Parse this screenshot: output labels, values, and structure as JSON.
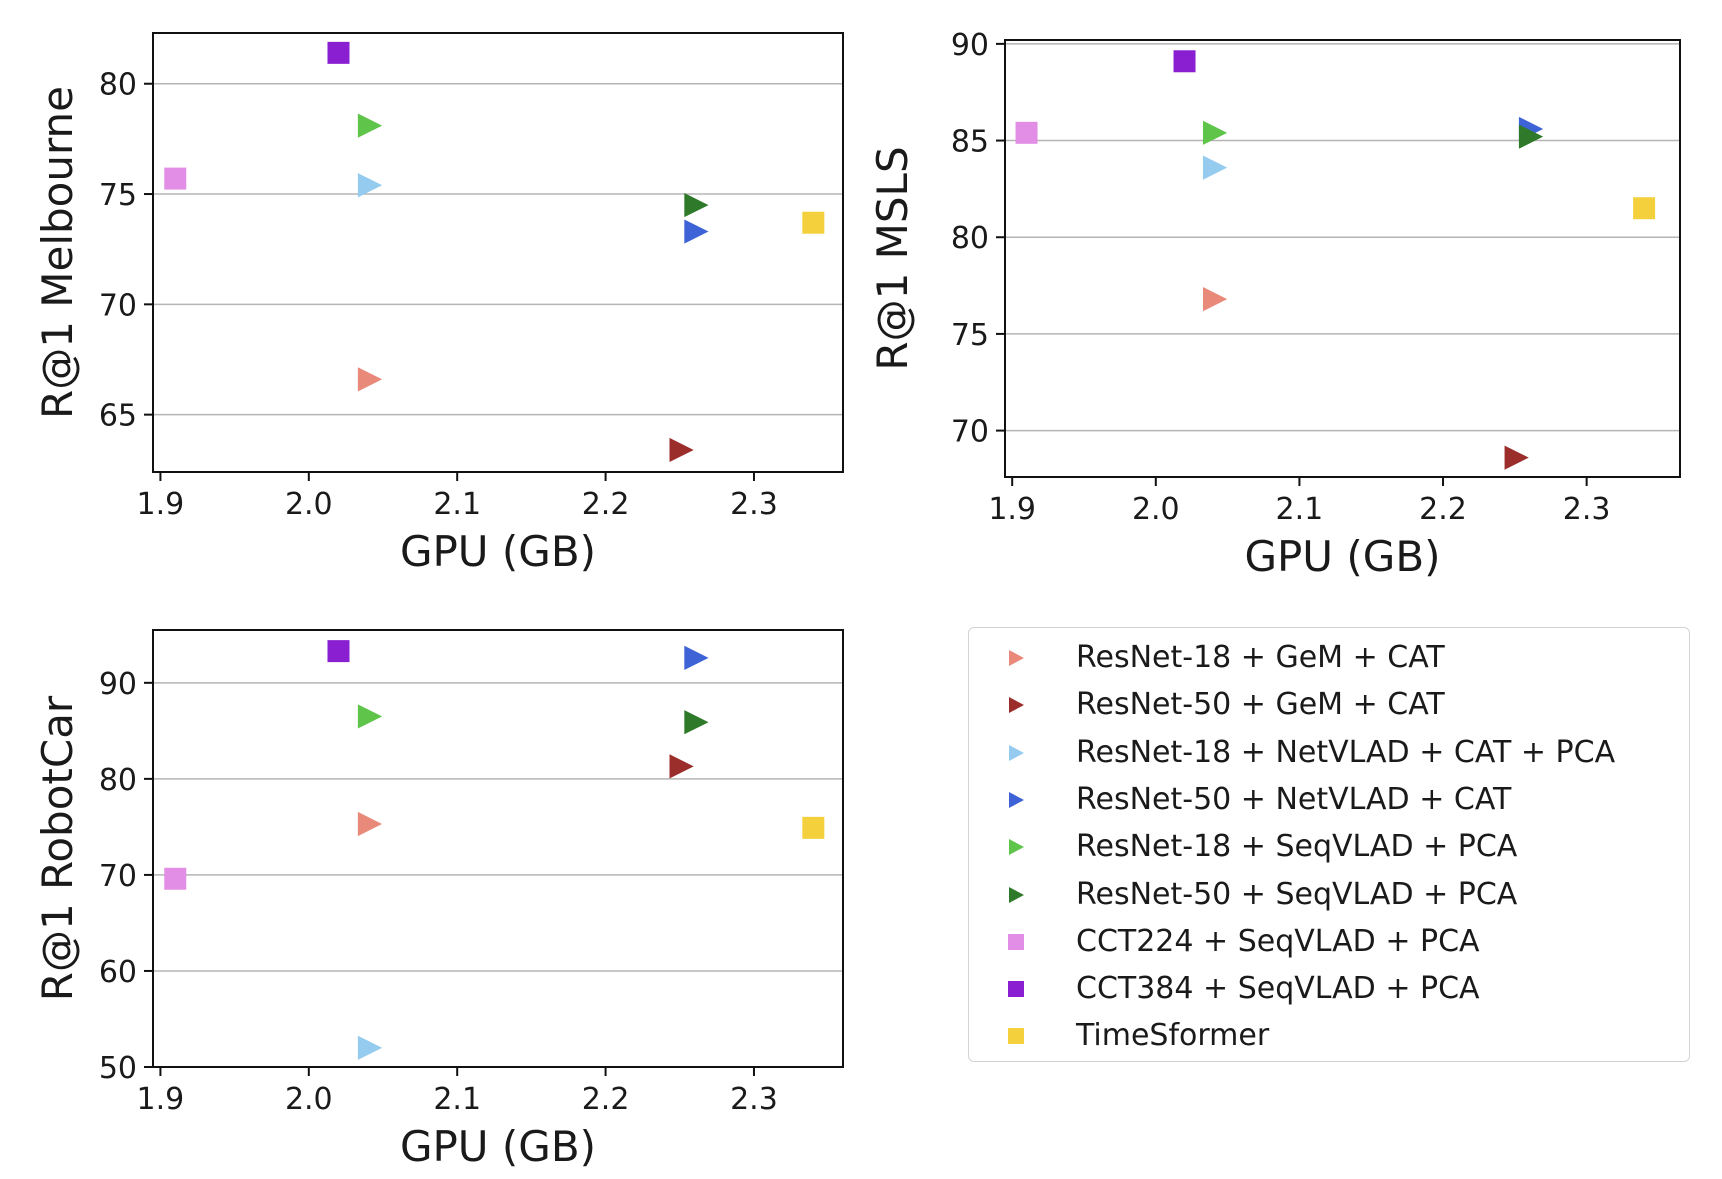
{
  "chart_data": [
    {
      "type": "scatter",
      "xlabel": "GPU (GB)",
      "ylabel": "R@1 Melbourne",
      "xlim": [
        1.895,
        2.36
      ],
      "ylim": [
        62.4,
        82.3
      ],
      "xticks": [
        1.9,
        2.0,
        2.1,
        2.2,
        2.3
      ],
      "yticks": [
        65,
        70,
        75,
        80
      ],
      "grid": "horizontal",
      "points": [
        {
          "name": "ResNet-18 + GeM + CAT",
          "x": 2.04,
          "y": 66.6
        },
        {
          "name": "ResNet-50 + GeM + CAT",
          "x": 2.25,
          "y": 63.4
        },
        {
          "name": "ResNet-18 + NetVLAD + CAT + PCA",
          "x": 2.04,
          "y": 75.4
        },
        {
          "name": "ResNet-50 + NetVLAD + CAT",
          "x": 2.26,
          "y": 73.3
        },
        {
          "name": "ResNet-18 + SeqVLAD + PCA",
          "x": 2.04,
          "y": 78.1
        },
        {
          "name": "ResNet-50 + SeqVLAD + PCA",
          "x": 2.26,
          "y": 74.5
        },
        {
          "name": "CCT224 + SeqVLAD + PCA",
          "x": 1.91,
          "y": 75.7
        },
        {
          "name": "CCT384 + SeqVLAD + PCA",
          "x": 2.02,
          "y": 81.4
        },
        {
          "name": "TimeSformer",
          "x": 2.34,
          "y": 73.7
        }
      ]
    },
    {
      "type": "scatter",
      "xlabel": "GPU (GB)",
      "ylabel": "R@1 MSLS",
      "xlim": [
        1.895,
        2.365
      ],
      "ylim": [
        67.6,
        90.2
      ],
      "xticks": [
        1.9,
        2.0,
        2.1,
        2.2,
        2.3
      ],
      "yticks": [
        70,
        75,
        80,
        85,
        90
      ],
      "grid": "horizontal",
      "points": [
        {
          "name": "ResNet-18 + GeM + CAT",
          "x": 2.04,
          "y": 76.8
        },
        {
          "name": "ResNet-50 + GeM + CAT",
          "x": 2.25,
          "y": 68.6
        },
        {
          "name": "ResNet-18 + NetVLAD + CAT + PCA",
          "x": 2.04,
          "y": 83.6
        },
        {
          "name": "ResNet-50 + NetVLAD + CAT",
          "x": 2.26,
          "y": 85.6
        },
        {
          "name": "ResNet-18 + SeqVLAD + PCA",
          "x": 2.04,
          "y": 85.4
        },
        {
          "name": "ResNet-50 + SeqVLAD + PCA",
          "x": 2.26,
          "y": 85.2
        },
        {
          "name": "CCT224 + SeqVLAD + PCA",
          "x": 1.91,
          "y": 85.4
        },
        {
          "name": "CCT384 + SeqVLAD + PCA",
          "x": 2.02,
          "y": 89.1
        },
        {
          "name": "TimeSformer",
          "x": 2.34,
          "y": 81.5
        }
      ]
    },
    {
      "type": "scatter",
      "xlabel": "GPU (GB)",
      "ylabel": "R@1 RobotCar",
      "xlim": [
        1.895,
        2.36
      ],
      "ylim": [
        50,
        95.5
      ],
      "xticks": [
        1.9,
        2.0,
        2.1,
        2.2,
        2.3
      ],
      "yticks": [
        50,
        60,
        70,
        80,
        90
      ],
      "grid": "horizontal",
      "points": [
        {
          "name": "ResNet-18 + GeM + CAT",
          "x": 2.04,
          "y": 75.3
        },
        {
          "name": "ResNet-50 + GeM + CAT",
          "x": 2.25,
          "y": 81.3
        },
        {
          "name": "ResNet-18 + NetVLAD + CAT + PCA",
          "x": 2.04,
          "y": 52.0
        },
        {
          "name": "ResNet-50 + NetVLAD + CAT",
          "x": 2.26,
          "y": 92.6
        },
        {
          "name": "ResNet-18 + SeqVLAD + PCA",
          "x": 2.04,
          "y": 86.5
        },
        {
          "name": "ResNet-50 + SeqVLAD + PCA",
          "x": 2.26,
          "y": 85.9
        },
        {
          "name": "CCT224 + SeqVLAD + PCA",
          "x": 1.91,
          "y": 69.6
        },
        {
          "name": "CCT384 + SeqVLAD + PCA",
          "x": 2.02,
          "y": 93.3
        },
        {
          "name": "TimeSformer",
          "x": 2.34,
          "y": 74.9
        }
      ]
    }
  ],
  "legend": {
    "placement": "lower-right",
    "entries": [
      {
        "label": "ResNet-18 + GeM + CAT",
        "marker": "triangle-right",
        "color": "#e9897a"
      },
      {
        "label": "ResNet-50 + GeM + CAT",
        "marker": "triangle-right",
        "color": "#9b2d2a"
      },
      {
        "label": "ResNet-18 + NetVLAD + CAT + PCA",
        "marker": "triangle-right",
        "color": "#94cbee"
      },
      {
        "label": "ResNet-50 + NetVLAD + CAT",
        "marker": "triangle-right",
        "color": "#3e63d6"
      },
      {
        "label": "ResNet-18 + SeqVLAD + PCA",
        "marker": "triangle-right",
        "color": "#5fc44a"
      },
      {
        "label": "ResNet-50 + SeqVLAD + PCA",
        "marker": "triangle-right",
        "color": "#2f7a2a"
      },
      {
        "label": "CCT224 + SeqVLAD + PCA",
        "marker": "square",
        "color": "#e38ee6"
      },
      {
        "label": "CCT384 + SeqVLAD + PCA",
        "marker": "square",
        "color": "#8a1fd1"
      },
      {
        "label": "TimeSformer",
        "marker": "square",
        "color": "#f5d03d"
      }
    ]
  }
}
